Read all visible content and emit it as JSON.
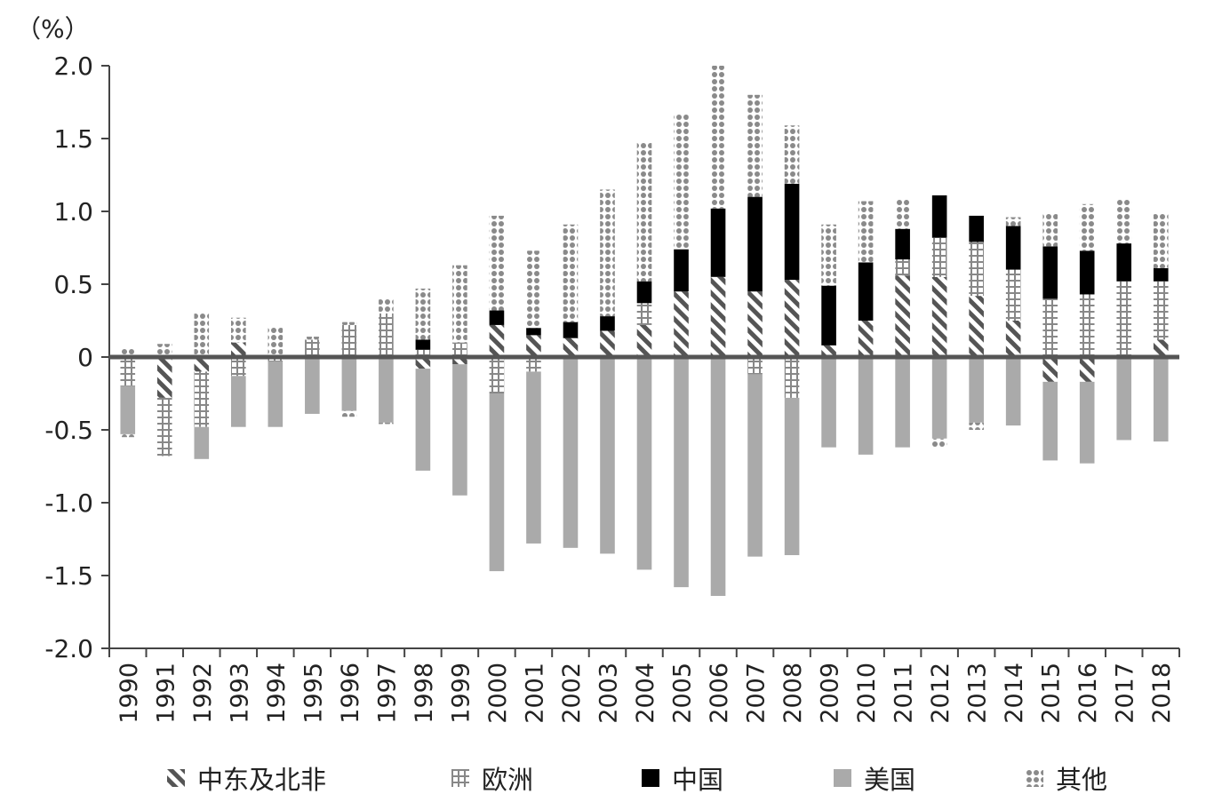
{
  "chart_data": {
    "type": "bar",
    "stacked": true,
    "unit_label": "（%）",
    "ylim": [
      -2.0,
      2.0
    ],
    "yticks": [
      2.0,
      1.5,
      1.0,
      0.5,
      0,
      -0.5,
      -1.0,
      -1.5,
      -2.0
    ],
    "ytick_labels": [
      "2.0",
      "1.5",
      "1.0",
      "0.5",
      "0",
      "-0.5",
      "-1.0",
      "-1.5",
      "-2.0"
    ],
    "categories": [
      "1990",
      "1991",
      "1992",
      "1993",
      "1994",
      "1995",
      "1996",
      "1997",
      "1998",
      "1999",
      "2000",
      "2001",
      "2002",
      "2003",
      "2004",
      "2005",
      "2006",
      "2007",
      "2008",
      "2009",
      "2010",
      "2011",
      "2012",
      "2013",
      "2014",
      "2015",
      "2016",
      "2017",
      "2018"
    ],
    "series": [
      {
        "name": "中东及北非",
        "color": "#555555",
        "pattern": "hatch",
        "values": [
          0.0,
          -0.28,
          -0.1,
          0.1,
          0.0,
          0.0,
          0.0,
          0.0,
          -0.08,
          -0.05,
          0.22,
          0.15,
          0.13,
          0.18,
          0.22,
          0.45,
          0.55,
          0.45,
          0.53,
          0.08,
          0.25,
          0.56,
          0.55,
          0.42,
          0.25,
          -0.17,
          -0.17,
          0.0,
          0.12
        ]
      },
      {
        "name": "欧洲",
        "color": "#888888",
        "pattern": "grid",
        "values": [
          -0.2,
          -0.4,
          -0.38,
          -0.13,
          -0.03,
          0.12,
          0.22,
          0.3,
          0.05,
          0.1,
          -0.25,
          -0.1,
          0.0,
          0.0,
          0.15,
          0.0,
          0.0,
          -0.12,
          -0.28,
          0.0,
          0.0,
          0.11,
          0.27,
          0.37,
          0.35,
          0.4,
          0.43,
          0.52,
          0.4
        ]
      },
      {
        "name": "中国",
        "color": "#000000",
        "pattern": "solid",
        "values": [
          0.0,
          0.0,
          0.0,
          0.0,
          0.0,
          0.0,
          0.0,
          0.0,
          0.07,
          0.0,
          0.1,
          0.05,
          0.11,
          0.1,
          0.15,
          0.29,
          0.47,
          0.65,
          0.66,
          0.41,
          0.4,
          0.21,
          0.29,
          0.18,
          0.3,
          0.36,
          0.3,
          0.26,
          0.09
        ]
      },
      {
        "name": "美国",
        "color": "#aaaaaa",
        "pattern": "solid",
        "values": [
          -0.33,
          0.0,
          -0.22,
          -0.35,
          -0.45,
          -0.39,
          -0.37,
          -0.45,
          -0.7,
          -0.9,
          -1.22,
          -1.18,
          -1.31,
          -1.35,
          -1.46,
          -1.58,
          -1.64,
          -1.25,
          -1.08,
          -0.62,
          -0.67,
          -0.62,
          -0.56,
          -0.45,
          -0.47,
          -0.54,
          -0.56,
          -0.57,
          -0.58
        ]
      },
      {
        "name": "其他",
        "color": "#9a9a9a",
        "pattern": "dots",
        "values": [
          0.06,
          0.09,
          0.31,
          0.17,
          0.21,
          0.02,
          0.02,
          0.1,
          0.35,
          0.53,
          0.65,
          0.53,
          0.67,
          0.87,
          0.96,
          0.93,
          0.98,
          0.7,
          0.4,
          0.42,
          0.42,
          0.2,
          0.0,
          0.0,
          0.06,
          0.23,
          0.32,
          0.3,
          0.38
        ]
      },
      {
        "name": "其他 (下方)",
        "legend": false,
        "color": "#9a9a9a",
        "pattern": "dots",
        "values": [
          -0.02,
          0.0,
          0.0,
          0.0,
          0.0,
          0.0,
          -0.04,
          -0.01,
          0.0,
          0.0,
          0.0,
          0.0,
          0.0,
          0.0,
          0.0,
          0.0,
          0.0,
          0.0,
          0.0,
          0.0,
          0.0,
          0.0,
          -0.06,
          -0.05,
          0.0,
          0.0,
          0.0,
          0.0,
          0.0
        ]
      }
    ],
    "legend": [
      "中东及北非",
      "欧洲",
      "中国",
      "美国",
      "其他"
    ],
    "legend_position": "bottom",
    "grid": false
  }
}
